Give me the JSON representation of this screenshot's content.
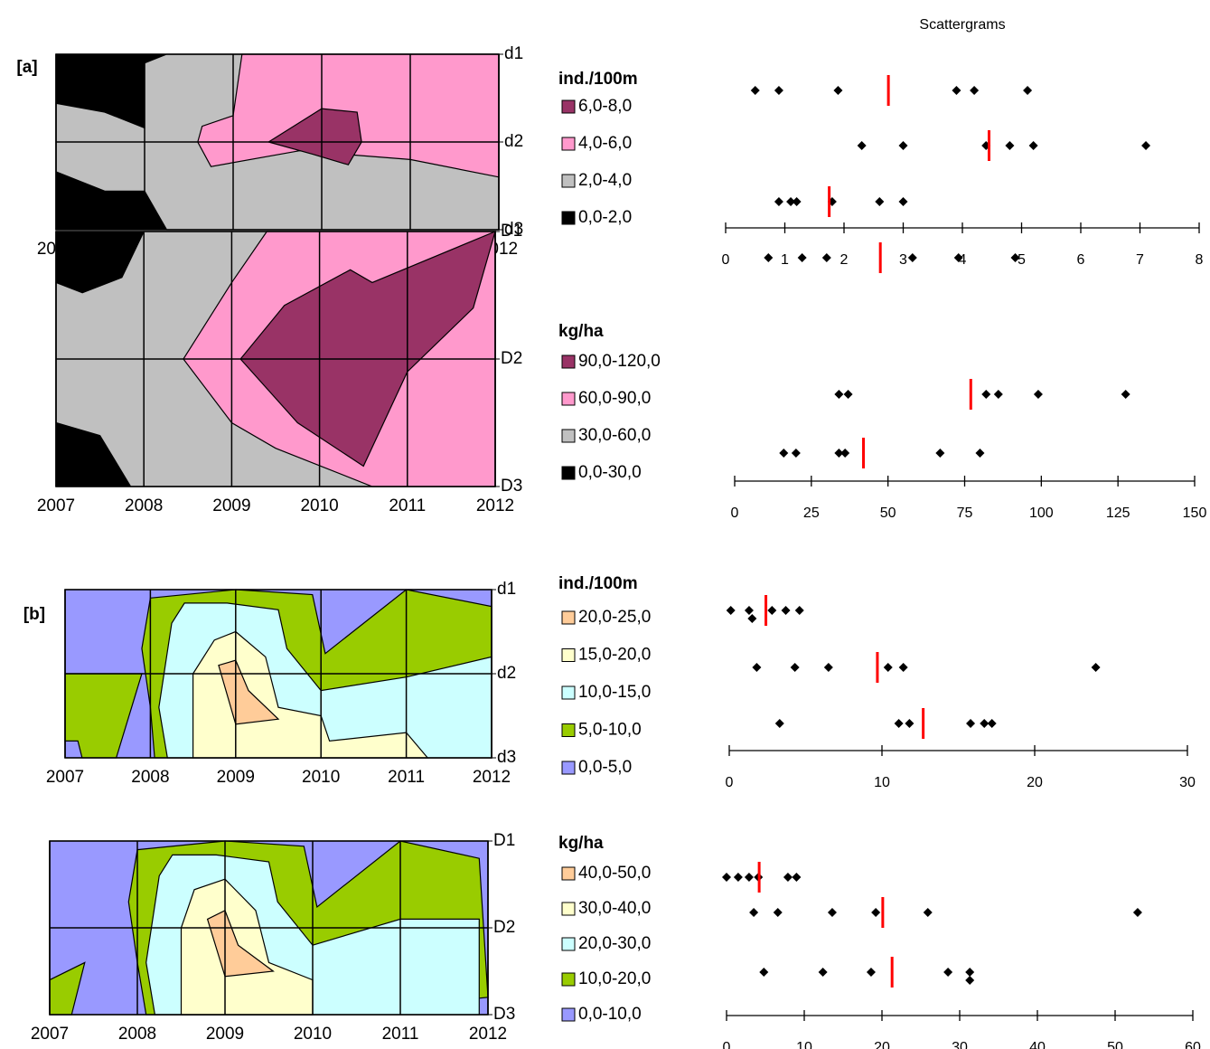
{
  "title": "Scattergrams",
  "chart_data": [
    {
      "type": "contour",
      "label": "[a]",
      "xlim": [
        2007,
        2012
      ],
      "xticks": [
        2007,
        2008,
        2009,
        2010,
        2011,
        2012
      ],
      "ylabels": [
        "d1",
        "d2",
        "d3"
      ],
      "legend_title": "ind./100m",
      "levels": [
        {
          "label": "6,0-8,0",
          "color": "#993366"
        },
        {
          "label": "4,0-6,0",
          "color": "#ff99cc"
        },
        {
          "label": "2,0-4,0",
          "color": "#c0c0c0"
        },
        {
          "label": "0,0-2,0",
          "color": "#000000"
        }
      ],
      "scatter": {
        "type": "strip",
        "xlim": [
          0,
          8
        ],
        "xticks": [
          0,
          1,
          2,
          3,
          4,
          5,
          6,
          7,
          8
        ],
        "mean_color": "#ff0000",
        "rows": [
          {
            "values": [
              0.5,
              0.9,
              1.9,
              3.9,
              4.2,
              5.1
            ],
            "mean": 2.75
          },
          {
            "values": [
              2.3,
              3.0,
              4.4,
              4.8,
              5.2,
              7.1
            ],
            "mean": 4.45
          },
          {
            "values": [
              0.9,
              1.1,
              1.2,
              1.8,
              2.6,
              3.0
            ],
            "mean": 1.75
          }
        ]
      }
    },
    {
      "type": "contour",
      "xlim": [
        2007,
        2012
      ],
      "xticks": [
        2007,
        2008,
        2009,
        2010,
        2011,
        2012
      ],
      "ylabels": [
        "D1",
        "D2",
        "D3"
      ],
      "legend_title": "kg/ha",
      "levels": [
        {
          "label": "90,0-120,0",
          "color": "#993366"
        },
        {
          "label": "60,0-90,0",
          "color": "#ff99cc"
        },
        {
          "label": "30,0-60,0",
          "color": "#c0c0c0"
        },
        {
          "label": "0,0-30,0",
          "color": "#000000"
        }
      ],
      "scatter": {
        "type": "strip",
        "xlim": [
          0,
          150
        ],
        "xticks": [
          0,
          25,
          50,
          75,
          100,
          125,
          150
        ],
        "mean_color": "#ff0000",
        "rows": [
          {
            "values": [
              11,
              22,
              30,
              58,
              73,
              91.5
            ],
            "mean": 47.5
          },
          {
            "values": [
              34,
              37,
              82,
              86,
              99,
              127.5
            ],
            "mean": 77
          },
          {
            "values": [
              16,
              20,
              34,
              36,
              67,
              80
            ],
            "mean": 42
          }
        ]
      }
    },
    {
      "type": "contour",
      "label": "[b]",
      "xlim": [
        2007,
        2012
      ],
      "xticks": [
        2007,
        2008,
        2009,
        2010,
        2011,
        2012
      ],
      "ylabels": [
        "d1",
        "d2",
        "d3"
      ],
      "legend_title": "ind./100m",
      "levels": [
        {
          "label": "20,0-25,0",
          "color": "#ffcc99"
        },
        {
          "label": "15,0-20,0",
          "color": "#ffffcc"
        },
        {
          "label": "10,0-15,0",
          "color": "#ccffff"
        },
        {
          "label": "5,0-10,0",
          "color": "#99cc00"
        },
        {
          "label": "0,0-5,0",
          "color": "#9999ff"
        }
      ],
      "scatter": {
        "type": "strip",
        "xlim": [
          0,
          30
        ],
        "xticks": [
          0,
          10,
          20,
          30
        ],
        "mean_color": "#ff0000",
        "rows": [
          {
            "values": [
              0.1,
              1.3,
              1.5,
              2.8,
              3.7,
              4.6
            ],
            "mean": 2.4
          },
          {
            "values": [
              1.8,
              4.3,
              6.5,
              10.4,
              11.4,
              24
            ],
            "mean": 9.7
          },
          {
            "values": [
              3.3,
              11.1,
              11.8,
              15.8,
              16.7,
              17.2
            ],
            "mean": 12.7
          }
        ]
      }
    },
    {
      "type": "contour",
      "xlim": [
        2007,
        2012
      ],
      "xticks": [
        2007,
        2008,
        2009,
        2010,
        2011,
        2012
      ],
      "ylabels": [
        "D1",
        "D2",
        "D3"
      ],
      "legend_title": "kg/ha",
      "levels": [
        {
          "label": "40,0-50,0",
          "color": "#ffcc99"
        },
        {
          "label": "30,0-40,0",
          "color": "#ffffcc"
        },
        {
          "label": "20,0-30,0",
          "color": "#ccffff"
        },
        {
          "label": "10,0-20,0",
          "color": "#99cc00"
        },
        {
          "label": "0,0-10,0",
          "color": "#9999ff"
        }
      ],
      "scatter": {
        "type": "strip",
        "xlim": [
          0,
          60
        ],
        "xticks": [
          0,
          10,
          20,
          30,
          40,
          50,
          60
        ],
        "mean_color": "#ff0000",
        "rows": [
          {
            "values": [
              0,
              1.5,
              2.9,
              4.1,
              7.9,
              9
            ],
            "mean": 4.2
          },
          {
            "values": [
              3.5,
              6.6,
              13.6,
              19.2,
              25.9,
              52.9
            ],
            "mean": 20.1
          },
          {
            "values": [
              4.8,
              12.4,
              18.6,
              28.5,
              31.3,
              31.3
            ],
            "mean": 21.3
          }
        ]
      }
    }
  ]
}
